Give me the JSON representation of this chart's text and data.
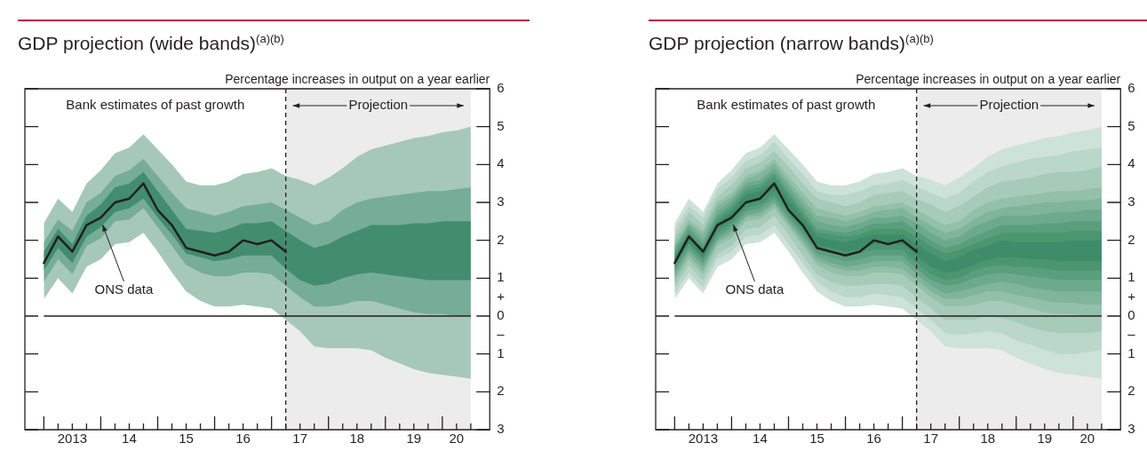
{
  "chart_data": [
    {
      "type": "line",
      "title": "GDP projection (wide bands)$^{(a)(b)}$",
      "ylabel": "Percentage increases in output on a year earlier",
      "x": [
        "2013-01",
        "2013-04",
        "2013-07",
        "2013-10",
        "2014-01",
        "2014-04",
        "2014-07",
        "2014-10",
        "2015-01",
        "2015-04",
        "2015-07",
        "2015-10",
        "2016-01",
        "2016-04",
        "2016-07",
        "2016-10",
        "2017-01",
        "2017-04",
        "2017-07",
        "2017-10",
        "2018-01",
        "2018-04",
        "2018-07",
        "2018-10",
        "2019-01",
        "2019-04",
        "2019-07",
        "2019-10",
        "2020-01",
        "2020-04",
        "2020-07"
      ],
      "xlim": [
        "2012-09",
        "2020-11"
      ],
      "xticks": [
        {
          "value": "2013-01",
          "label": null
        },
        {
          "value": "2013-04",
          "label": null
        },
        {
          "value": "2013-07",
          "label": "2013"
        },
        {
          "value": "2013-10",
          "label": null
        },
        {
          "value": "2014-01",
          "label": null
        },
        {
          "value": "2014-04",
          "label": null
        },
        {
          "value": "2014-07",
          "label": "14"
        },
        {
          "value": "2014-10",
          "label": null
        },
        {
          "value": "2015-01",
          "label": null
        },
        {
          "value": "2015-04",
          "label": null
        },
        {
          "value": "2015-07",
          "label": "15"
        },
        {
          "value": "2015-10",
          "label": null
        },
        {
          "value": "2016-01",
          "label": null
        },
        {
          "value": "2016-04",
          "label": null
        },
        {
          "value": "2016-07",
          "label": "16"
        },
        {
          "value": "2016-10",
          "label": null
        },
        {
          "value": "2017-01",
          "label": null
        },
        {
          "value": "2017-04",
          "label": null
        },
        {
          "value": "2017-07",
          "label": "17"
        },
        {
          "value": "2017-10",
          "label": null
        },
        {
          "value": "2018-01",
          "label": null
        },
        {
          "value": "2018-04",
          "label": null
        },
        {
          "value": "2018-07",
          "label": "18"
        },
        {
          "value": "2018-10",
          "label": null
        },
        {
          "value": "2019-01",
          "label": null
        },
        {
          "value": "2019-04",
          "label": null
        },
        {
          "value": "2019-07",
          "label": "19"
        },
        {
          "value": "2019-10",
          "label": null
        },
        {
          "value": "2020-01",
          "label": null
        },
        {
          "value": "2020-04",
          "label": "20"
        },
        {
          "value": "2020-07",
          "label": null
        }
      ],
      "ylim": [
        -3,
        6
      ],
      "yticks": [
        6,
        5,
        4,
        3,
        2,
        1,
        {
          "value": 0.5,
          "label": "+"
        },
        0,
        {
          "value": -0.5,
          "label": "–"
        },
        {
          "value": -1,
          "label": "1"
        },
        {
          "value": -2,
          "label": "2"
        },
        {
          "value": -3,
          "label": "3"
        }
      ],
      "series": [
        {
          "type": "area",
          "color": "#a6c8b8",
          "values": [
            null,
            null,
            null,
            null,
            null,
            null,
            null,
            null,
            null,
            null,
            null,
            null,
            null,
            null,
            null,
            null,
            null,
            null,
            null,
            null,
            null,
            null,
            null,
            null,
            null,
            null,
            null,
            null,
            null,
            null,
            null
          ],
          "upper": [
            2.45,
            3.1,
            2.75,
            3.5,
            3.85,
            4.3,
            4.45,
            4.8,
            4.4,
            4.0,
            3.55,
            3.45,
            3.45,
            3.55,
            3.75,
            3.8,
            3.9,
            3.7,
            3.6,
            3.45,
            3.65,
            3.9,
            4.2,
            4.4,
            4.5,
            4.6,
            4.7,
            4.75,
            4.85,
            4.9,
            5.0
          ],
          "lower": [
            0.45,
            1.0,
            0.6,
            1.3,
            1.5,
            1.9,
            1.95,
            2.2,
            1.7,
            1.15,
            0.65,
            0.4,
            0.25,
            0.25,
            0.3,
            0.25,
            0.2,
            -0.1,
            -0.4,
            -0.8,
            -0.85,
            -0.85,
            -0.85,
            -0.9,
            -1.1,
            -1.25,
            -1.4,
            -1.5,
            -1.55,
            -1.6,
            -1.65
          ]
        },
        {
          "type": "area",
          "color": "#76ad96",
          "values": [
            null,
            null,
            null,
            null,
            null,
            null,
            null,
            null,
            null,
            null,
            null,
            null,
            null,
            null,
            null,
            null,
            null,
            null,
            null,
            null,
            null,
            null,
            null,
            null,
            null,
            null,
            null,
            null,
            null,
            null,
            null
          ],
          "upper": [
            1.95,
            2.55,
            2.25,
            3.0,
            3.25,
            3.7,
            3.85,
            4.15,
            3.7,
            3.25,
            2.85,
            2.75,
            2.65,
            2.75,
            2.9,
            2.95,
            3.0,
            2.8,
            2.6,
            2.4,
            2.5,
            2.8,
            3.0,
            3.1,
            3.15,
            3.2,
            3.25,
            3.3,
            3.3,
            3.35,
            3.4
          ],
          "lower": [
            0.9,
            1.5,
            1.1,
            1.85,
            2.05,
            2.5,
            2.55,
            2.85,
            2.35,
            1.85,
            1.35,
            1.15,
            1.05,
            1.05,
            1.15,
            1.15,
            1.1,
            0.8,
            0.5,
            0.25,
            0.25,
            0.3,
            0.4,
            0.4,
            0.3,
            0.2,
            0.1,
            0.05,
            0.05,
            0.0,
            0.0
          ]
        },
        {
          "type": "area",
          "color": "#428d6e",
          "values": [
            null,
            null,
            null,
            null,
            null,
            null,
            null,
            null,
            null,
            null,
            null,
            null,
            null,
            null,
            null,
            null,
            null,
            null,
            null,
            null,
            null,
            null,
            null,
            null,
            null,
            null,
            null,
            null,
            null,
            null,
            null
          ],
          "upper": [
            1.7,
            2.3,
            1.9,
            2.65,
            2.95,
            3.4,
            3.5,
            3.8,
            3.3,
            2.8,
            2.3,
            2.25,
            2.2,
            2.3,
            2.45,
            2.45,
            2.5,
            2.25,
            2.0,
            1.8,
            1.9,
            2.1,
            2.25,
            2.4,
            2.4,
            2.4,
            2.45,
            2.45,
            2.5,
            2.5,
            2.5
          ],
          "lower": [
            1.2,
            1.8,
            1.4,
            2.1,
            2.35,
            2.75,
            2.85,
            3.1,
            2.6,
            2.15,
            1.65,
            1.55,
            1.45,
            1.5,
            1.6,
            1.6,
            1.6,
            1.25,
            0.95,
            0.8,
            0.85,
            1.0,
            1.1,
            1.15,
            1.1,
            1.05,
            1.0,
            0.95,
            0.95,
            0.95,
            0.95
          ]
        },
        {
          "type": "line",
          "name": "ONS data",
          "color": "#231f20",
          "values": [
            1.4,
            2.1,
            1.7,
            2.4,
            2.6,
            3.0,
            3.1,
            3.5,
            2.8,
            2.4,
            1.8,
            1.7,
            1.6,
            1.7,
            2.0,
            1.9,
            2.0,
            1.7,
            null,
            null,
            null,
            null,
            null,
            null,
            null,
            null,
            null,
            null,
            null,
            null,
            null
          ]
        }
      ],
      "ref_lines": [
        {
          "axis": "y",
          "value": 0,
          "color": "#231f20"
        },
        {
          "axis": "x",
          "value": "2017-04",
          "line_style": "dashed",
          "color": "#231f20"
        }
      ],
      "bands": [
        {
          "axis": "x",
          "from": "2017-04",
          "to": "2020-07",
          "color": "#ececec",
          "label": "Projection"
        }
      ],
      "annotations": [
        "Bank estimates of past growth"
      ]
    },
    {
      "type": "line",
      "title": "GDP projection (narrow bands)$^{(a)(b)}$",
      "ylabel": "Percentage increases in output on a year earlier",
      "x": [
        "2013-01",
        "2013-04",
        "2013-07",
        "2013-10",
        "2014-01",
        "2014-04",
        "2014-07",
        "2014-10",
        "2015-01",
        "2015-04",
        "2015-07",
        "2015-10",
        "2016-01",
        "2016-04",
        "2016-07",
        "2016-10",
        "2017-01",
        "2017-04",
        "2017-07",
        "2017-10",
        "2018-01",
        "2018-04",
        "2018-07",
        "2018-10",
        "2019-01",
        "2019-04",
        "2019-07",
        "2019-10",
        "2020-01",
        "2020-04",
        "2020-07"
      ],
      "xlim": [
        "2012-09",
        "2020-11"
      ],
      "xticks": [
        {
          "value": "2013-01",
          "label": null
        },
        {
          "value": "2013-04",
          "label": null
        },
        {
          "value": "2013-07",
          "label": "2013"
        },
        {
          "value": "2013-10",
          "label": null
        },
        {
          "value": "2014-01",
          "label": null
        },
        {
          "value": "2014-04",
          "label": null
        },
        {
          "value": "2014-07",
          "label": "14"
        },
        {
          "value": "2014-10",
          "label": null
        },
        {
          "value": "2015-01",
          "label": null
        },
        {
          "value": "2015-04",
          "label": null
        },
        {
          "value": "2015-07",
          "label": "15"
        },
        {
          "value": "2015-10",
          "label": null
        },
        {
          "value": "2016-01",
          "label": null
        },
        {
          "value": "2016-04",
          "label": null
        },
        {
          "value": "2016-07",
          "label": "16"
        },
        {
          "value": "2016-10",
          "label": null
        },
        {
          "value": "2017-01",
          "label": null
        },
        {
          "value": "2017-04",
          "label": null
        },
        {
          "value": "2017-07",
          "label": "17"
        },
        {
          "value": "2017-10",
          "label": null
        },
        {
          "value": "2018-01",
          "label": null
        },
        {
          "value": "2018-04",
          "label": null
        },
        {
          "value": "2018-07",
          "label": "18"
        },
        {
          "value": "2018-10",
          "label": null
        },
        {
          "value": "2019-01",
          "label": null
        },
        {
          "value": "2019-04",
          "label": null
        },
        {
          "value": "2019-07",
          "label": "19"
        },
        {
          "value": "2019-10",
          "label": null
        },
        {
          "value": "2020-01",
          "label": null
        },
        {
          "value": "2020-04",
          "label": "20"
        },
        {
          "value": "2020-07",
          "label": null
        }
      ],
      "ylim": [
        -3,
        6
      ],
      "yticks": [
        6,
        5,
        4,
        3,
        2,
        1,
        {
          "value": 0.5,
          "label": "+"
        },
        0,
        {
          "value": -0.5,
          "label": "–"
        },
        {
          "value": -1,
          "label": "1"
        },
        {
          "value": -2,
          "label": "2"
        },
        {
          "value": -3,
          "label": "3"
        }
      ],
      "series": [
        {
          "type": "area",
          "color": "#cde2d8",
          "values": [
            null,
            null,
            null,
            null,
            null,
            null,
            null,
            null,
            null,
            null,
            null,
            null,
            null,
            null,
            null,
            null,
            null,
            null,
            null,
            null,
            null,
            null,
            null,
            null,
            null,
            null,
            null,
            null,
            null,
            null,
            null
          ],
          "upper": [
            2.45,
            3.1,
            2.75,
            3.5,
            3.85,
            4.3,
            4.45,
            4.8,
            4.4,
            4.0,
            3.55,
            3.45,
            3.45,
            3.55,
            3.75,
            3.8,
            3.9,
            3.7,
            3.6,
            3.45,
            3.65,
            3.9,
            4.2,
            4.4,
            4.5,
            4.6,
            4.7,
            4.75,
            4.85,
            4.9,
            5.0
          ],
          "lower": [
            0.45,
            1.0,
            0.6,
            1.3,
            1.5,
            1.9,
            1.95,
            2.2,
            1.7,
            1.15,
            0.65,
            0.4,
            0.25,
            0.25,
            0.3,
            0.25,
            0.2,
            -0.1,
            -0.4,
            -0.8,
            -0.85,
            -0.85,
            -0.85,
            -0.9,
            -1.1,
            -1.25,
            -1.4,
            -1.5,
            -1.55,
            -1.6,
            -1.65
          ]
        },
        {
          "type": "area",
          "color": "#bad7c9",
          "values": [
            null,
            null,
            null,
            null,
            null,
            null,
            null,
            null,
            null,
            null,
            null,
            null,
            null,
            null,
            null,
            null,
            null,
            null,
            null,
            null,
            null,
            null,
            null,
            null,
            null,
            null,
            null,
            null,
            null,
            null,
            null
          ],
          "upper": [
            2.3,
            2.9,
            2.6,
            3.35,
            3.65,
            4.1,
            4.25,
            4.6,
            4.15,
            3.75,
            3.3,
            3.2,
            3.2,
            3.3,
            3.45,
            3.5,
            3.6,
            3.4,
            3.25,
            3.1,
            3.25,
            3.55,
            3.8,
            3.95,
            4.05,
            4.15,
            4.2,
            4.25,
            4.35,
            4.4,
            4.45
          ],
          "lower": [
            0.6,
            1.15,
            0.75,
            1.5,
            1.7,
            2.1,
            2.15,
            2.4,
            1.9,
            1.4,
            0.9,
            0.65,
            0.5,
            0.5,
            0.6,
            0.55,
            0.5,
            0.2,
            -0.1,
            -0.45,
            -0.5,
            -0.45,
            -0.4,
            -0.45,
            -0.65,
            -0.75,
            -0.9,
            -1.0,
            -1.0,
            -0.95,
            -0.9
          ]
        },
        {
          "type": "area",
          "color": "#a7cbb9",
          "values": [
            null,
            null,
            null,
            null,
            null,
            null,
            null,
            null,
            null,
            null,
            null,
            null,
            null,
            null,
            null,
            null,
            null,
            null,
            null,
            null,
            null,
            null,
            null,
            null,
            null,
            null,
            null,
            null,
            null,
            null,
            null
          ],
          "upper": [
            2.1,
            2.75,
            2.4,
            3.15,
            3.45,
            3.9,
            4.05,
            4.35,
            3.95,
            3.5,
            3.1,
            3.0,
            2.9,
            3.0,
            3.2,
            3.25,
            3.3,
            3.1,
            2.95,
            2.75,
            2.9,
            3.15,
            3.4,
            3.55,
            3.6,
            3.65,
            3.75,
            3.8,
            3.8,
            3.85,
            3.95
          ],
          "lower": [
            0.75,
            1.35,
            0.95,
            1.65,
            1.85,
            2.3,
            2.35,
            2.65,
            2.15,
            1.6,
            1.1,
            0.9,
            0.8,
            0.8,
            0.85,
            0.85,
            0.8,
            0.5,
            0.2,
            -0.1,
            -0.1,
            -0.1,
            0.0,
            -0.05,
            -0.15,
            -0.3,
            -0.4,
            -0.45,
            -0.45,
            -0.45,
            -0.4
          ]
        },
        {
          "type": "area",
          "color": "#93c0aa",
          "values": [
            null,
            null,
            null,
            null,
            null,
            null,
            null,
            null,
            null,
            null,
            null,
            null,
            null,
            null,
            null,
            null,
            null,
            null,
            null,
            null,
            null,
            null,
            null,
            null,
            null,
            null,
            null,
            null,
            null,
            null,
            null
          ],
          "upper": [
            1.95,
            2.55,
            2.25,
            3.0,
            3.25,
            3.7,
            3.85,
            4.15,
            3.7,
            3.25,
            2.85,
            2.75,
            2.65,
            2.75,
            2.9,
            2.95,
            3.0,
            2.8,
            2.6,
            2.4,
            2.5,
            2.8,
            3.0,
            3.1,
            3.15,
            3.2,
            3.25,
            3.3,
            3.3,
            3.35,
            3.4
          ],
          "lower": [
            0.9,
            1.5,
            1.1,
            1.85,
            2.05,
            2.5,
            2.55,
            2.85,
            2.35,
            1.85,
            1.35,
            1.15,
            1.05,
            1.05,
            1.15,
            1.15,
            1.1,
            0.8,
            0.5,
            0.25,
            0.25,
            0.3,
            0.4,
            0.4,
            0.3,
            0.2,
            0.1,
            0.05,
            0.05,
            0.0,
            0.0
          ]
        },
        {
          "type": "area",
          "color": "#80b59b",
          "values": [
            null,
            null,
            null,
            null,
            null,
            null,
            null,
            null,
            null,
            null,
            null,
            null,
            null,
            null,
            null,
            null,
            null,
            null,
            null,
            null,
            null,
            null,
            null,
            null,
            null,
            null,
            null,
            null,
            null,
            null,
            null
          ],
          "upper": [
            1.85,
            2.45,
            2.15,
            2.9,
            3.15,
            3.6,
            3.75,
            4.05,
            3.55,
            3.1,
            2.65,
            2.6,
            2.5,
            2.6,
            2.75,
            2.8,
            2.85,
            2.6,
            2.4,
            2.2,
            2.3,
            2.55,
            2.75,
            2.85,
            2.9,
            2.95,
            3.0,
            3.0,
            3.05,
            3.05,
            3.1
          ],
          "lower": [
            1.0,
            1.6,
            1.2,
            1.95,
            2.15,
            2.6,
            2.65,
            2.95,
            2.45,
            1.95,
            1.45,
            1.3,
            1.2,
            1.2,
            1.3,
            1.3,
            1.25,
            0.95,
            0.65,
            0.45,
            0.45,
            0.55,
            0.65,
            0.65,
            0.55,
            0.5,
            0.4,
            0.35,
            0.35,
            0.3,
            0.3
          ]
        },
        {
          "type": "area",
          "color": "#6daa8c",
          "values": [
            null,
            null,
            null,
            null,
            null,
            null,
            null,
            null,
            null,
            null,
            null,
            null,
            null,
            null,
            null,
            null,
            null,
            null,
            null,
            null,
            null,
            null,
            null,
            null,
            null,
            null,
            null,
            null,
            null,
            null,
            null
          ],
          "upper": [
            1.8,
            2.4,
            2.0,
            2.75,
            3.05,
            3.5,
            3.6,
            3.9,
            3.45,
            2.95,
            2.5,
            2.4,
            2.35,
            2.45,
            2.6,
            2.6,
            2.65,
            2.45,
            2.2,
            2.0,
            2.1,
            2.35,
            2.5,
            2.65,
            2.65,
            2.65,
            2.7,
            2.75,
            2.75,
            2.8,
            2.8
          ],
          "lower": [
            1.1,
            1.7,
            1.3,
            2.0,
            2.25,
            2.65,
            2.75,
            3.0,
            2.5,
            2.05,
            1.55,
            1.4,
            1.3,
            1.35,
            1.45,
            1.45,
            1.45,
            1.1,
            0.8,
            0.6,
            0.65,
            0.75,
            0.85,
            0.9,
            0.85,
            0.75,
            0.7,
            0.65,
            0.65,
            0.65,
            0.65
          ]
        },
        {
          "type": "area",
          "color": "#5a9f7d",
          "values": [
            null,
            null,
            null,
            null,
            null,
            null,
            null,
            null,
            null,
            null,
            null,
            null,
            null,
            null,
            null,
            null,
            null,
            null,
            null,
            null,
            null,
            null,
            null,
            null,
            null,
            null,
            null,
            null,
            null,
            null,
            null
          ],
          "upper": [
            1.7,
            2.3,
            1.9,
            2.65,
            2.95,
            3.4,
            3.5,
            3.8,
            3.3,
            2.8,
            2.3,
            2.25,
            2.2,
            2.3,
            2.45,
            2.45,
            2.5,
            2.25,
            2.0,
            1.8,
            1.9,
            2.1,
            2.25,
            2.4,
            2.4,
            2.4,
            2.45,
            2.45,
            2.5,
            2.5,
            2.5
          ],
          "lower": [
            1.2,
            1.8,
            1.4,
            2.1,
            2.35,
            2.75,
            2.85,
            3.1,
            2.6,
            2.15,
            1.65,
            1.55,
            1.45,
            1.5,
            1.6,
            1.6,
            1.6,
            1.25,
            0.95,
            0.8,
            0.85,
            1.0,
            1.1,
            1.15,
            1.1,
            1.05,
            1.0,
            0.95,
            0.95,
            0.95,
            0.95
          ]
        },
        {
          "type": "area",
          "color": "#4a966f",
          "values": [
            null,
            null,
            null,
            null,
            null,
            null,
            null,
            null,
            null,
            null,
            null,
            null,
            null,
            null,
            null,
            null,
            null,
            null,
            null,
            null,
            null,
            null,
            null,
            null,
            null,
            null,
            null,
            null,
            null,
            null,
            null
          ],
          "upper": [
            1.6,
            2.2,
            1.8,
            2.55,
            2.85,
            3.3,
            3.4,
            3.7,
            3.2,
            2.7,
            2.2,
            2.15,
            2.1,
            2.15,
            2.3,
            2.3,
            2.3,
            2.1,
            1.85,
            1.65,
            1.75,
            1.9,
            2.05,
            2.2,
            2.2,
            2.2,
            2.2,
            2.2,
            2.25,
            2.25,
            2.25
          ],
          "lower": [
            1.3,
            1.9,
            1.5,
            2.2,
            2.45,
            2.85,
            2.95,
            3.2,
            2.7,
            2.25,
            1.75,
            1.65,
            1.6,
            1.65,
            1.75,
            1.75,
            1.75,
            1.4,
            1.1,
            0.95,
            1.0,
            1.2,
            1.3,
            1.35,
            1.3,
            1.3,
            1.25,
            1.2,
            1.2,
            1.2,
            1.2
          ]
        },
        {
          "type": "area",
          "color": "#3e8c69",
          "values": [
            null,
            null,
            null,
            null,
            null,
            null,
            null,
            null,
            null,
            null,
            null,
            null,
            null,
            null,
            null,
            null,
            null,
            null,
            null,
            null,
            null,
            null,
            null,
            null,
            null,
            null,
            null,
            null,
            null,
            null,
            null
          ],
          "upper": [
            1.55,
            2.15,
            1.75,
            2.45,
            2.75,
            3.2,
            3.3,
            3.55,
            3.05,
            2.6,
            2.1,
            2.0,
            1.95,
            2.05,
            2.15,
            2.15,
            2.15,
            1.9,
            1.65,
            1.45,
            1.55,
            1.75,
            1.85,
            2.0,
            1.95,
            1.95,
            1.95,
            1.95,
            2.0,
            2.0,
            2.0
          ],
          "lower": [
            1.35,
            1.95,
            1.55,
            2.3,
            2.55,
            2.95,
            3.05,
            3.35,
            2.85,
            2.35,
            1.85,
            1.8,
            1.7,
            1.75,
            1.9,
            1.9,
            1.9,
            1.6,
            1.3,
            1.15,
            1.2,
            1.35,
            1.5,
            1.55,
            1.55,
            1.5,
            1.5,
            1.45,
            1.45,
            1.45,
            1.45
          ]
        },
        {
          "type": "line",
          "name": "ONS data",
          "color": "#231f20",
          "values": [
            1.4,
            2.1,
            1.7,
            2.4,
            2.6,
            3.0,
            3.1,
            3.5,
            2.8,
            2.4,
            1.8,
            1.7,
            1.6,
            1.7,
            2.0,
            1.9,
            2.0,
            1.7,
            null,
            null,
            null,
            null,
            null,
            null,
            null,
            null,
            null,
            null,
            null,
            null,
            null
          ]
        }
      ],
      "ref_lines": [
        {
          "axis": "y",
          "value": 0,
          "color": "#231f20"
        },
        {
          "axis": "x",
          "value": "2017-04",
          "line_style": "dashed",
          "color": "#231f20"
        }
      ],
      "bands": [
        {
          "axis": "x",
          "from": "2017-04",
          "to": "2020-07",
          "color": "#ececec",
          "label": "Projection"
        }
      ],
      "annotations": [
        "Bank estimates of past growth"
      ]
    }
  ]
}
